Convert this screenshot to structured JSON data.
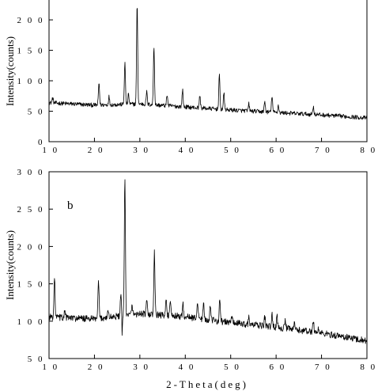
{
  "figure": {
    "xlabel": "2-Theta(deg)"
  },
  "chart_data": [
    {
      "type": "line",
      "panel_label": "",
      "ylabel": "Intensity(counts)",
      "xlim": [
        10,
        80
      ],
      "ylim": [
        0,
        230
      ],
      "xticks": [
        10,
        20,
        30,
        40,
        50,
        60,
        70,
        80
      ],
      "yticks": [
        0,
        50,
        100,
        150,
        200
      ],
      "xtick_labels": [
        "1 0",
        "2 0",
        "3 0",
        "4 0",
        "5 0",
        "6 0",
        "7 0",
        "8 0"
      ],
      "ytick_labels": [
        "0",
        "5 0",
        "1 0 0",
        "1 5 0",
        "2 0 0"
      ],
      "baseline": [
        [
          10,
          64
        ],
        [
          15,
          62
        ],
        [
          20,
          60
        ],
        [
          30,
          62
        ],
        [
          40,
          57
        ],
        [
          50,
          52
        ],
        [
          60,
          48
        ],
        [
          70,
          44
        ],
        [
          80,
          39
        ]
      ],
      "peaks": [
        {
          "x": 10.8,
          "y": 72
        },
        {
          "x": 21.0,
          "y": 97
        },
        {
          "x": 23.2,
          "y": 74
        },
        {
          "x": 26.7,
          "y": 130
        },
        {
          "x": 27.5,
          "y": 78
        },
        {
          "x": 29.4,
          "y": 226
        },
        {
          "x": 31.5,
          "y": 82
        },
        {
          "x": 33.1,
          "y": 158
        },
        {
          "x": 36.0,
          "y": 78
        },
        {
          "x": 39.4,
          "y": 85
        },
        {
          "x": 43.2,
          "y": 76
        },
        {
          "x": 47.5,
          "y": 110
        },
        {
          "x": 48.5,
          "y": 80
        },
        {
          "x": 54.0,
          "y": 62
        },
        {
          "x": 57.5,
          "y": 66
        },
        {
          "x": 59.1,
          "y": 76
        },
        {
          "x": 60.5,
          "y": 60
        },
        {
          "x": 68.2,
          "y": 58
        }
      ]
    },
    {
      "type": "line",
      "panel_label": "b",
      "ylabel": "Intensity(counts)",
      "xlim": [
        10,
        80
      ],
      "ylim": [
        50,
        300
      ],
      "xticks": [
        10,
        20,
        30,
        40,
        50,
        60,
        70,
        80
      ],
      "yticks": [
        50,
        100,
        150,
        200,
        250,
        300
      ],
      "xtick_labels": [
        "1 0",
        "2 0",
        "3 0",
        "4 0",
        "5 0",
        "6 0",
        "7 0",
        "8 0"
      ],
      "ytick_labels": [
        "5 0",
        "1 0 0",
        "1 5 0",
        "2 0 0",
        "2 5 0",
        "3 0 0"
      ],
      "baseline": [
        [
          10,
          106
        ],
        [
          15,
          104
        ],
        [
          20,
          103
        ],
        [
          30,
          110
        ],
        [
          40,
          106
        ],
        [
          50,
          98
        ],
        [
          60,
          92
        ],
        [
          70,
          84
        ],
        [
          80,
          74
        ]
      ],
      "peaks": [
        {
          "x": 11.2,
          "y": 158
        },
        {
          "x": 13.5,
          "y": 115
        },
        {
          "x": 20.9,
          "y": 153
        },
        {
          "x": 23.0,
          "y": 114
        },
        {
          "x": 25.8,
          "y": 136
        },
        {
          "x": 26.7,
          "y": 290
        },
        {
          "x": 28.3,
          "y": 122
        },
        {
          "x": 31.5,
          "y": 128
        },
        {
          "x": 33.2,
          "y": 192
        },
        {
          "x": 35.8,
          "y": 132
        },
        {
          "x": 36.7,
          "y": 124
        },
        {
          "x": 39.5,
          "y": 122
        },
        {
          "x": 42.7,
          "y": 127
        },
        {
          "x": 44.0,
          "y": 124
        },
        {
          "x": 45.5,
          "y": 118
        },
        {
          "x": 47.6,
          "y": 130
        },
        {
          "x": 50.3,
          "y": 108
        },
        {
          "x": 54.0,
          "y": 104
        },
        {
          "x": 57.5,
          "y": 106
        },
        {
          "x": 59.1,
          "y": 109
        },
        {
          "x": 60.2,
          "y": 106
        },
        {
          "x": 62.0,
          "y": 100
        },
        {
          "x": 64.0,
          "y": 96
        },
        {
          "x": 68.2,
          "y": 102
        },
        {
          "x": 69.3,
          "y": 90
        }
      ],
      "dips": [
        {
          "x": 26.1,
          "y": 79
        }
      ]
    }
  ]
}
